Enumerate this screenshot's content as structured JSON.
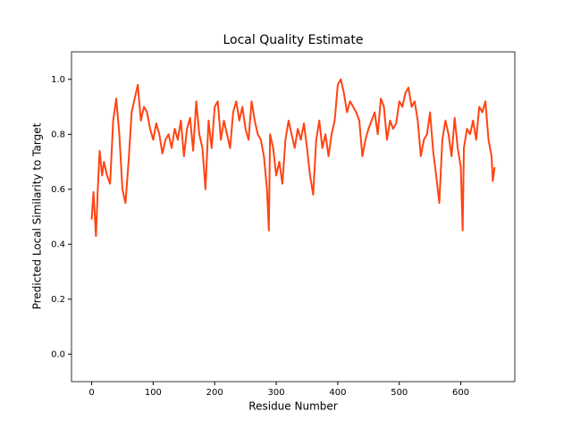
{
  "chart_data": {
    "type": "line",
    "title": "Local Quality Estimate",
    "x_label": "Residue Number",
    "y_label": "Predicted Local Similarity to Target",
    "x": [
      0,
      3,
      7,
      10,
      13,
      17,
      20,
      25,
      30,
      35,
      40,
      45,
      50,
      55,
      60,
      65,
      70,
      75,
      80,
      85,
      90,
      95,
      100,
      105,
      110,
      115,
      120,
      125,
      130,
      135,
      140,
      145,
      150,
      155,
      160,
      165,
      170,
      175,
      180,
      185,
      190,
      195,
      200,
      205,
      210,
      215,
      220,
      225,
      230,
      235,
      240,
      245,
      250,
      255,
      260,
      265,
      270,
      275,
      280,
      285,
      288,
      290,
      295,
      300,
      305,
      310,
      315,
      320,
      325,
      330,
      335,
      340,
      345,
      350,
      355,
      360,
      365,
      370,
      375,
      380,
      385,
      390,
      395,
      400,
      405,
      410,
      415,
      420,
      425,
      430,
      435,
      440,
      445,
      450,
      455,
      460,
      465,
      470,
      475,
      480,
      485,
      490,
      495,
      500,
      505,
      510,
      515,
      520,
      525,
      530,
      535,
      540,
      545,
      550,
      555,
      560,
      565,
      570,
      575,
      580,
      585,
      590,
      595,
      600,
      603,
      605,
      610,
      615,
      620,
      625,
      630,
      635,
      640,
      645,
      650,
      652,
      655
    ],
    "series": [
      {
        "color": "#ff4412",
        "values": [
          0.49,
          0.59,
          0.43,
          0.6,
          0.74,
          0.65,
          0.7,
          0.65,
          0.62,
          0.85,
          0.93,
          0.8,
          0.6,
          0.55,
          0.7,
          0.88,
          0.93,
          0.98,
          0.85,
          0.9,
          0.88,
          0.82,
          0.78,
          0.84,
          0.8,
          0.73,
          0.78,
          0.8,
          0.75,
          0.82,
          0.78,
          0.85,
          0.72,
          0.82,
          0.86,
          0.74,
          0.92,
          0.8,
          0.75,
          0.6,
          0.85,
          0.75,
          0.9,
          0.92,
          0.78,
          0.85,
          0.8,
          0.75,
          0.88,
          0.92,
          0.85,
          0.9,
          0.82,
          0.78,
          0.92,
          0.85,
          0.8,
          0.78,
          0.72,
          0.6,
          0.45,
          0.8,
          0.75,
          0.65,
          0.7,
          0.62,
          0.78,
          0.85,
          0.8,
          0.75,
          0.82,
          0.78,
          0.84,
          0.75,
          0.65,
          0.58,
          0.78,
          0.85,
          0.75,
          0.8,
          0.72,
          0.8,
          0.85,
          0.98,
          1.0,
          0.95,
          0.88,
          0.92,
          0.9,
          0.88,
          0.85,
          0.72,
          0.78,
          0.82,
          0.85,
          0.88,
          0.8,
          0.93,
          0.9,
          0.78,
          0.85,
          0.82,
          0.84,
          0.92,
          0.9,
          0.95,
          0.97,
          0.9,
          0.92,
          0.85,
          0.72,
          0.78,
          0.8,
          0.88,
          0.74,
          0.65,
          0.55,
          0.78,
          0.85,
          0.8,
          0.72,
          0.86,
          0.75,
          0.68,
          0.45,
          0.75,
          0.82,
          0.8,
          0.85,
          0.78,
          0.9,
          0.88,
          0.92,
          0.78,
          0.72,
          0.63,
          0.68
        ]
      }
    ],
    "xlim": [
      -32.75,
      687.75
    ],
    "ylim": [
      -0.1,
      1.1
    ],
    "xticks": [
      0,
      100,
      200,
      300,
      400,
      500,
      600
    ],
    "yticks": [
      {
        "value": 0,
        "label": "0.0"
      },
      0.2,
      0.4,
      0.6,
      0.8,
      {
        "value": 1,
        "label": "1.0"
      }
    ]
  }
}
